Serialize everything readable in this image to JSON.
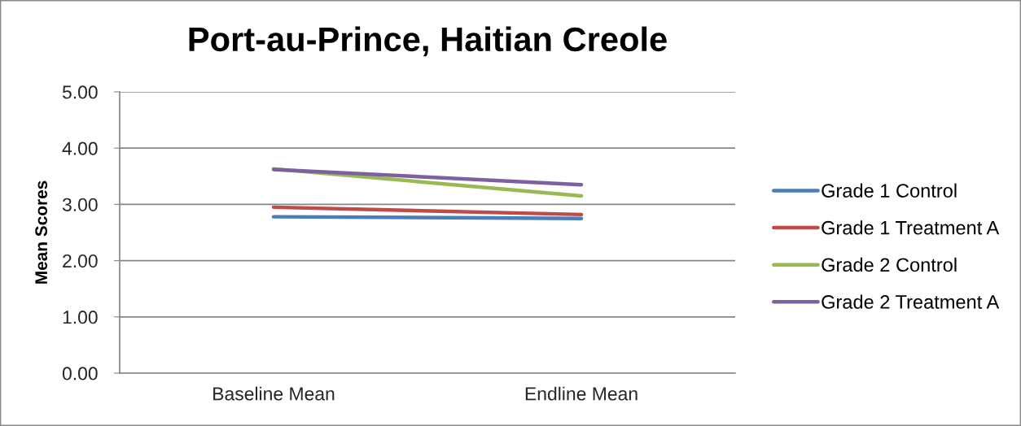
{
  "chart_data": {
    "type": "line",
    "title": "Port-au-Prince, Haitian Creole",
    "ylabel": "Mean Scores",
    "categories": [
      "Baseline Mean",
      "Endline Mean"
    ],
    "series": [
      {
        "name": "Grade 1 Control",
        "color": "#4a7ebb",
        "values": [
          2.78,
          2.75
        ]
      },
      {
        "name": "Grade 1 Treatment A",
        "color": "#be4b48",
        "values": [
          2.95,
          2.82
        ]
      },
      {
        "name": "Grade 2 Control",
        "color": "#98b954",
        "values": [
          3.63,
          3.15
        ]
      },
      {
        "name": "Grade 2 Treatment A",
        "color": "#7d60a0",
        "values": [
          3.62,
          3.35
        ]
      }
    ],
    "ylim": [
      0,
      5
    ],
    "yticks": [
      {
        "value": 0,
        "label": "0.00"
      },
      {
        "value": 1,
        "label": "1.00"
      },
      {
        "value": 2,
        "label": "2.00"
      },
      {
        "value": 3,
        "label": "3.00"
      },
      {
        "value": 4,
        "label": "4.00"
      },
      {
        "value": 5,
        "label": "5.00"
      }
    ],
    "grid": "y",
    "legend": "right"
  }
}
